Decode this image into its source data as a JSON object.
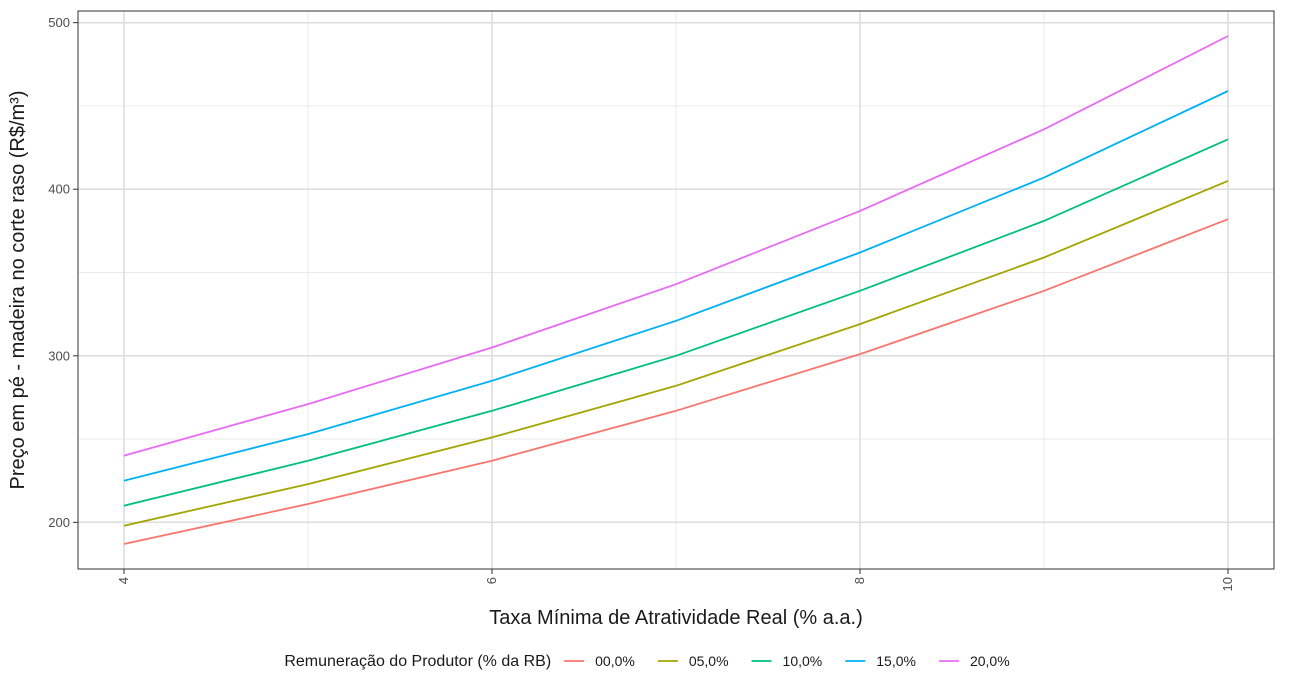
{
  "chart_data": {
    "type": "line",
    "xlabel": "Taxa Mínima de Atratividade Real (% a.a.)",
    "ylabel": "Preço em pé - madeira no corte raso (R$/m³)",
    "x": [
      4,
      5,
      6,
      7,
      8,
      9,
      10
    ],
    "x_ticks": [
      4,
      6,
      8,
      10
    ],
    "x_tick_labels": [
      "4",
      "6",
      "8",
      "10"
    ],
    "xlim": [
      3.75,
      10.25
    ],
    "y_ticks": [
      200,
      300,
      400,
      500
    ],
    "y_tick_labels": [
      "200",
      "300",
      "400",
      "500"
    ],
    "ylim": [
      172,
      507
    ],
    "grid": true,
    "legend": {
      "title": "Remuneração do Produtor (% da RB)",
      "position": "bottom"
    },
    "series": [
      {
        "name": "00,0%",
        "color": "#F8766D",
        "values": [
          187,
          211,
          237,
          267,
          301,
          339,
          382
        ]
      },
      {
        "name": "05,0%",
        "color": "#A3A500",
        "values": [
          198,
          223,
          251,
          282,
          319,
          359,
          405
        ]
      },
      {
        "name": "10,0%",
        "color": "#00BF7D",
        "values": [
          210,
          237,
          267,
          300,
          339,
          381,
          430
        ]
      },
      {
        "name": "15,0%",
        "color": "#00B0F6",
        "values": [
          225,
          253,
          285,
          321,
          362,
          407,
          459
        ]
      },
      {
        "name": "20,0%",
        "color": "#E76BF3",
        "values": [
          240,
          271,
          305,
          343,
          387,
          436,
          492
        ]
      }
    ]
  }
}
